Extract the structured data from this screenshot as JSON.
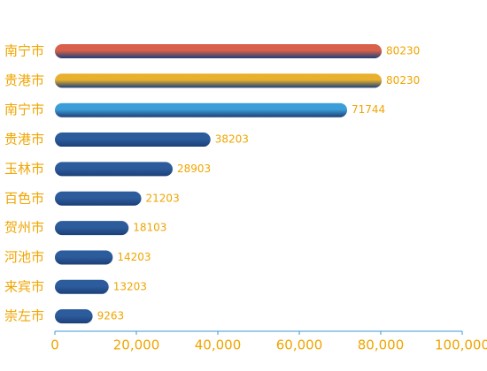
{
  "chart_data": {
    "type": "bar",
    "orientation": "horizontal",
    "categories": [
      "南宁市",
      "贵港市",
      "南宁市",
      "贵港市",
      "玉林市",
      "百色市",
      "贺州市",
      "河池市",
      "来宾市",
      "崇左市"
    ],
    "values": [
      80230,
      80230,
      71744,
      38203,
      28903,
      21203,
      18103,
      14203,
      13203,
      9263
    ],
    "colors": [
      "#d9604a",
      "#e8b02c",
      "#3c9ed8",
      "#2d5c9c",
      "#2d5c9c",
      "#2d5c9c",
      "#2d5c9c",
      "#2d5c9c",
      "#2d5c9c",
      "#2d5c9c"
    ],
    "xlim": [
      0,
      100000
    ],
    "xticks": [
      0,
      {
        "value": 20000,
        "label": "20,000"
      },
      {
        "value": 40000,
        "label": "40,000"
      },
      {
        "value": 60000,
        "label": "60,000"
      },
      {
        "value": 80000,
        "label": "80,000"
      },
      {
        "value": 100000,
        "label": "100,000"
      }
    ]
  }
}
